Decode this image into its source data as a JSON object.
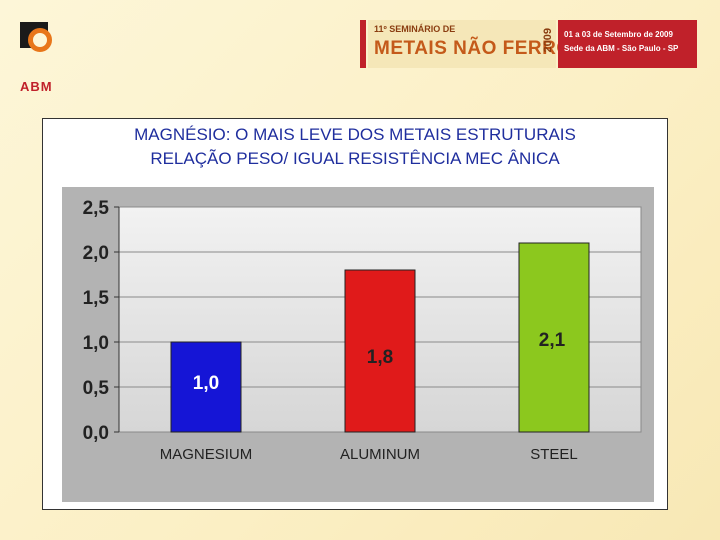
{
  "logo": {
    "text": "ABM"
  },
  "banner": {
    "edition": "11º SEMINÁRIO DE",
    "name": "METAIS NÃO FERROSOS",
    "year": "2009",
    "dates": "01 a 03 de Setembro de 2009",
    "venue": "Sede da ABM - São Paulo - SP"
  },
  "chart_data": {
    "type": "bar",
    "title": "MAGNÉSIO: O MAIS LEVE DOS METAIS ESTRUTURAIS",
    "subtitle": "RELAÇÃO PESO/ IGUAL RESISTÊNCIA MEC ÂNICA",
    "categories": [
      "MAGNESIUM",
      "ALUMINUM",
      "STEEL"
    ],
    "values": [
      1.0,
      1.8,
      2.1
    ],
    "data_labels": [
      "1,0",
      "1,8",
      "2,1"
    ],
    "colors": [
      "#1515d6",
      "#e01a1a",
      "#8cc81e"
    ],
    "y_ticks": [
      "0,0",
      "0,5",
      "1,0",
      "1,5",
      "2,0",
      "2,5"
    ],
    "ylim": [
      0,
      2.5
    ],
    "grid": true
  }
}
